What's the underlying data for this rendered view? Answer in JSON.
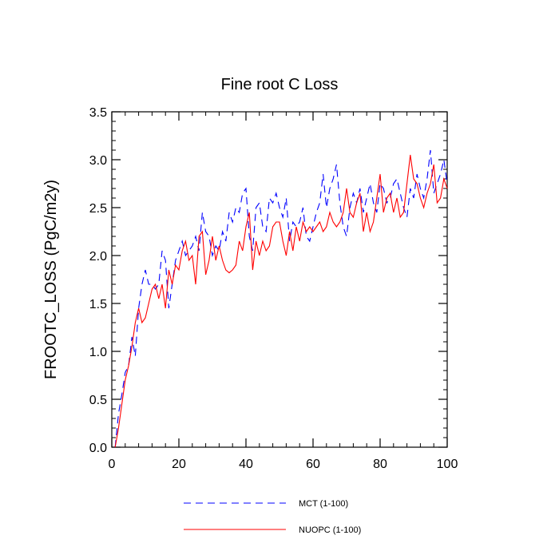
{
  "chart_data": {
    "type": "line",
    "title": "Fine root C Loss",
    "xlabel": "",
    "ylabel": "FROOTC_LOSS  (PgC/m2y)",
    "xlim": [
      0,
      100
    ],
    "ylim": [
      0,
      3.5
    ],
    "x_ticks": [
      0,
      20,
      40,
      60,
      80,
      100
    ],
    "x_tick_labels": [
      "0",
      "20",
      "40",
      "60",
      "80",
      "100"
    ],
    "y_ticks": [
      0,
      0.5,
      1.0,
      1.5,
      2.0,
      2.5,
      3.0,
      3.5
    ],
    "y_tick_labels": [
      "0.0",
      "0.5",
      "1.0",
      "1.5",
      "2.0",
      "2.5",
      "3.0",
      "3.5"
    ],
    "grid": false,
    "legend_position": "bottom-center",
    "series": [
      {
        "name": "MCT (1-100)",
        "color": "#0000ff",
        "dash": "dashed",
        "x": [
          1,
          2,
          3,
          4,
          5,
          6,
          7,
          8,
          9,
          10,
          11,
          12,
          13,
          14,
          15,
          16,
          17,
          18,
          19,
          20,
          21,
          22,
          23,
          24,
          25,
          26,
          27,
          28,
          29,
          30,
          31,
          32,
          33,
          34,
          35,
          36,
          37,
          38,
          39,
          40,
          41,
          42,
          43,
          44,
          45,
          46,
          47,
          48,
          49,
          50,
          51,
          52,
          53,
          54,
          55,
          56,
          57,
          58,
          59,
          60,
          61,
          62,
          63,
          64,
          65,
          66,
          67,
          68,
          69,
          70,
          71,
          72,
          73,
          74,
          75,
          76,
          77,
          78,
          79,
          80,
          81,
          82,
          83,
          84,
          85,
          86,
          87,
          88,
          89,
          90,
          91,
          92,
          93,
          94,
          95,
          96,
          97,
          98,
          99,
          100
        ],
        "values": [
          0.0,
          0.35,
          0.55,
          0.78,
          0.85,
          1.15,
          0.95,
          1.45,
          1.7,
          1.85,
          1.7,
          1.7,
          1.65,
          1.7,
          2.05,
          1.95,
          1.45,
          1.7,
          1.95,
          2.05,
          2.15,
          2.0,
          2.05,
          2.1,
          2.2,
          2.05,
          2.45,
          2.25,
          2.2,
          2.0,
          2.1,
          2.05,
          2.25,
          2.15,
          2.45,
          2.35,
          2.5,
          2.45,
          2.65,
          2.7,
          2.2,
          2.05,
          2.5,
          2.55,
          2.3,
          2.25,
          2.6,
          2.55,
          2.65,
          2.5,
          2.4,
          2.6,
          2.15,
          2.35,
          2.3,
          2.35,
          2.5,
          2.2,
          2.15,
          2.3,
          2.45,
          2.55,
          2.85,
          2.5,
          2.7,
          2.8,
          2.95,
          2.55,
          2.3,
          2.2,
          2.5,
          2.65,
          2.55,
          2.7,
          2.45,
          2.6,
          2.75,
          2.55,
          2.45,
          2.75,
          2.7,
          2.55,
          2.6,
          2.75,
          2.8,
          2.65,
          2.5,
          2.4,
          2.7,
          2.6,
          2.85,
          2.7,
          2.6,
          2.8,
          3.1,
          2.65,
          2.75,
          2.85,
          3.0,
          2.75
        ]
      },
      {
        "name": "NUOPC (1-100)",
        "color": "#ff0000",
        "dash": "solid",
        "x": [
          1,
          2,
          3,
          4,
          5,
          6,
          7,
          8,
          9,
          10,
          11,
          12,
          13,
          14,
          15,
          16,
          17,
          18,
          19,
          20,
          21,
          22,
          23,
          24,
          25,
          26,
          27,
          28,
          29,
          30,
          31,
          32,
          33,
          34,
          35,
          36,
          37,
          38,
          39,
          40,
          41,
          42,
          43,
          44,
          45,
          46,
          47,
          48,
          49,
          50,
          51,
          52,
          53,
          54,
          55,
          56,
          57,
          58,
          59,
          60,
          61,
          62,
          63,
          64,
          65,
          66,
          67,
          68,
          69,
          70,
          71,
          72,
          73,
          74,
          75,
          76,
          77,
          78,
          79,
          80,
          81,
          82,
          83,
          84,
          85,
          86,
          87,
          88,
          89,
          90,
          91,
          92,
          93,
          94,
          95,
          96,
          97,
          98,
          99,
          100
        ],
        "values": [
          0.0,
          0.2,
          0.45,
          0.7,
          0.85,
          1.05,
          1.3,
          1.45,
          1.3,
          1.35,
          1.5,
          1.65,
          1.7,
          1.55,
          1.7,
          1.45,
          1.85,
          1.7,
          1.9,
          1.85,
          2.05,
          2.15,
          1.95,
          2.0,
          1.7,
          2.2,
          2.25,
          1.8,
          1.95,
          2.2,
          1.95,
          2.1,
          1.95,
          1.85,
          1.82,
          1.85,
          1.9,
          2.15,
          2.05,
          2.3,
          2.45,
          1.85,
          2.15,
          2.0,
          2.15,
          2.05,
          2.1,
          2.3,
          2.35,
          2.35,
          2.15,
          2.0,
          2.25,
          2.05,
          2.3,
          2.15,
          2.35,
          2.25,
          2.3,
          2.25,
          2.3,
          2.35,
          2.25,
          2.3,
          2.45,
          2.35,
          2.3,
          2.35,
          2.45,
          2.7,
          2.45,
          2.4,
          2.55,
          2.65,
          2.25,
          2.45,
          2.25,
          2.35,
          2.6,
          2.85,
          2.45,
          2.6,
          2.65,
          2.45,
          2.6,
          2.4,
          2.45,
          2.75,
          3.05,
          2.8,
          2.75,
          2.6,
          2.5,
          2.65,
          2.75,
          2.95,
          2.55,
          2.6,
          2.8,
          2.7
        ]
      }
    ]
  }
}
